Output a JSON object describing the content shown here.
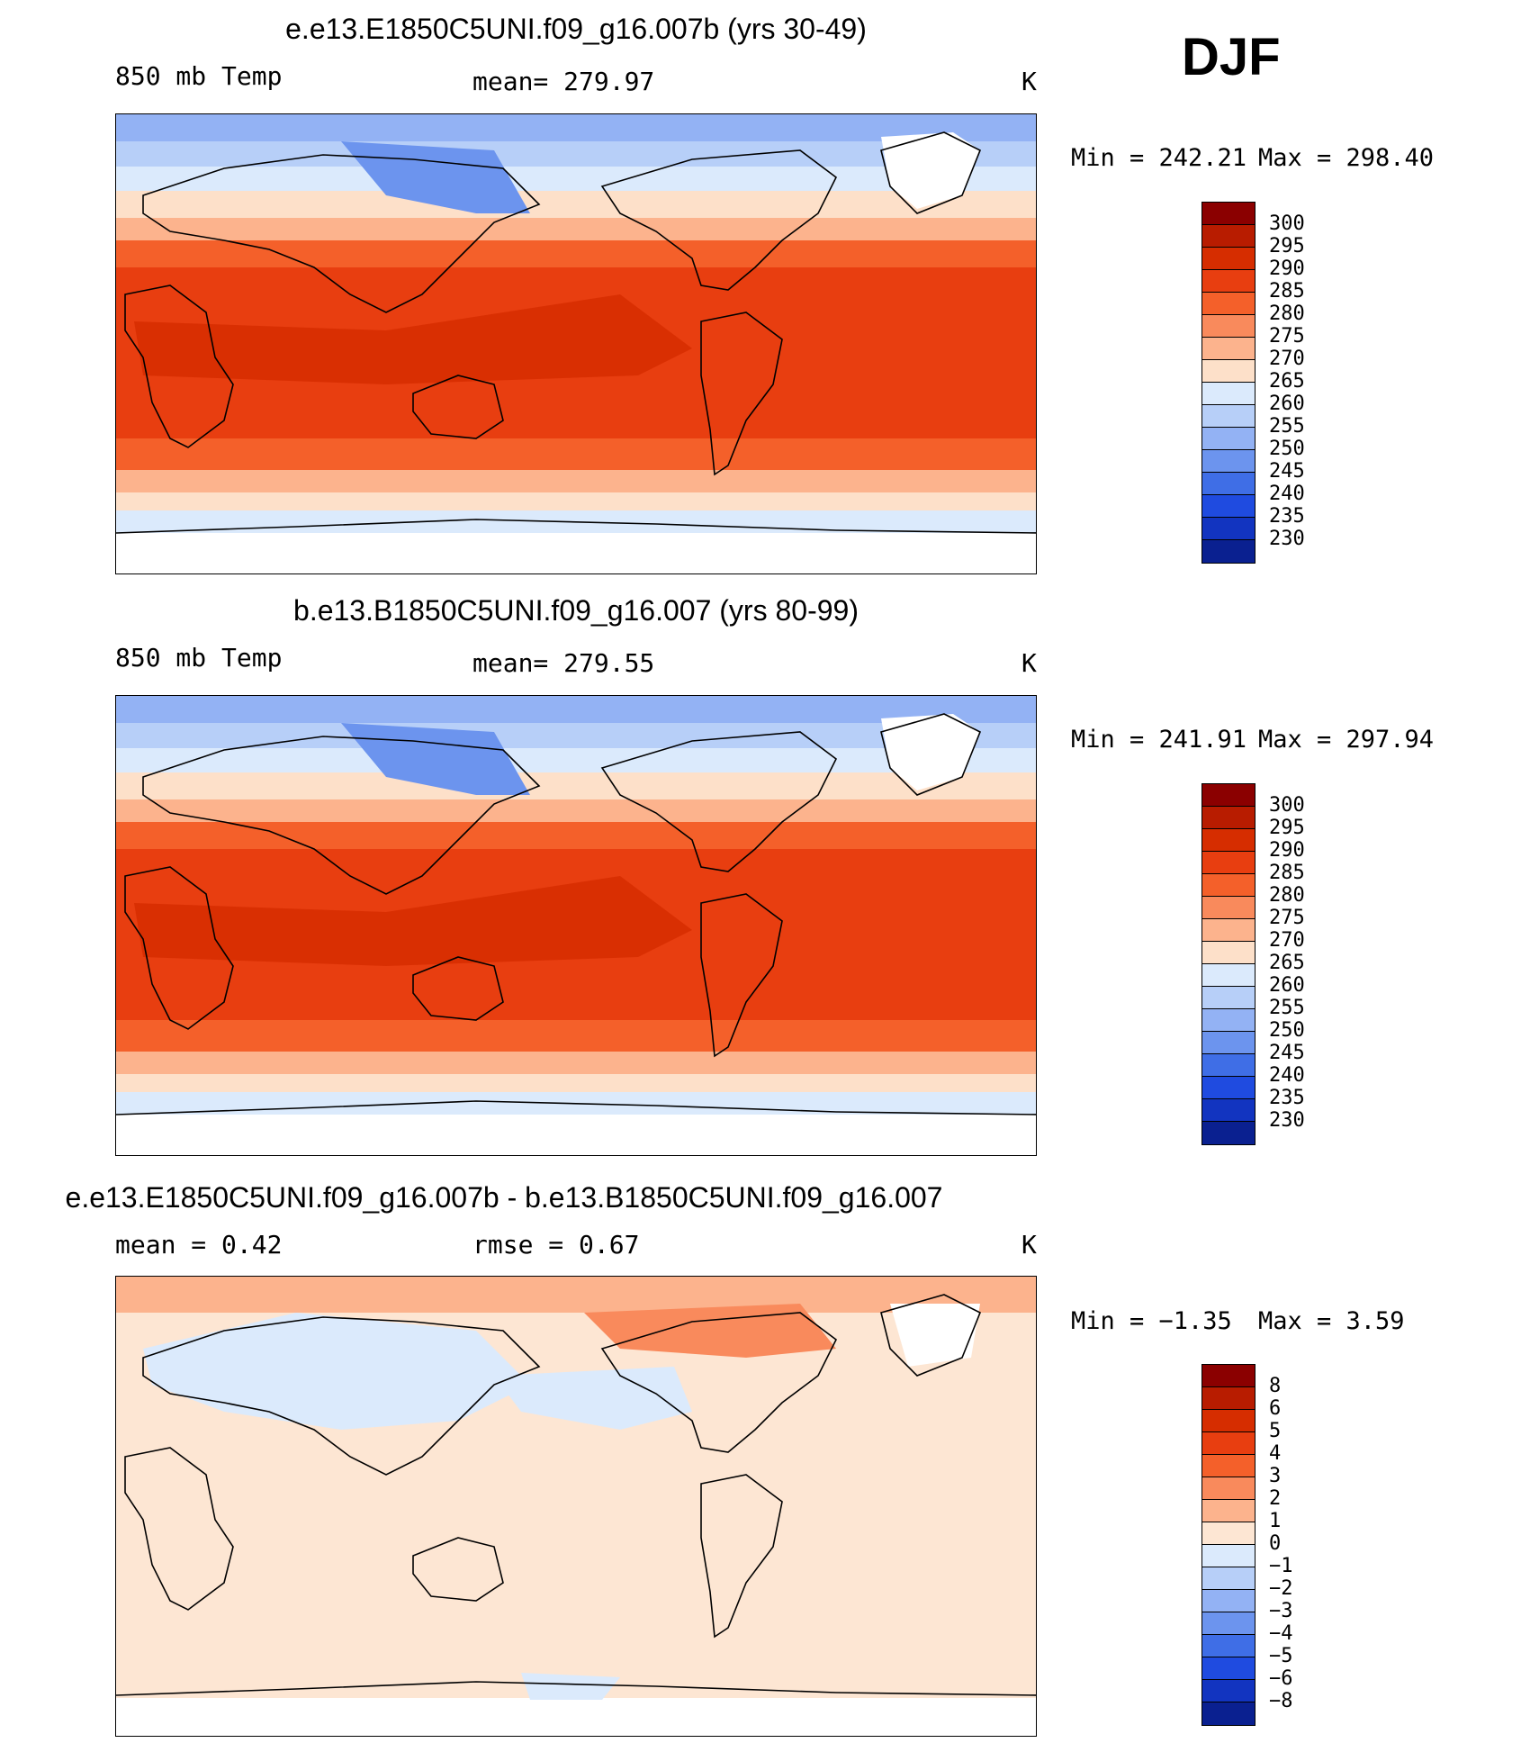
{
  "season": "DJF",
  "panels": [
    {
      "title": "e.e13.E1850C5UNI.f09_g16.007b (yrs 30-49)",
      "left_label": "850 mb  Temp",
      "center_label": "mean=  279.97",
      "unit": "K",
      "min_label": "Min  =  242.21",
      "max_label": "Max  =  298.40",
      "kind": "abs"
    },
    {
      "title": "b.e13.B1850C5UNI.f09_g16.007 (yrs 80-99)",
      "left_label": "850 mb  Temp",
      "center_label": "mean=  279.55",
      "unit": "K",
      "min_label": "Min  =  241.91",
      "max_label": "Max  =  297.94",
      "kind": "abs"
    },
    {
      "title": "e.e13.E1850C5UNI.f09_g16.007b - b.e13.B1850C5UNI.f09_g16.007",
      "left_label": "mean  =     0.42",
      "center_label": "rmse  =     0.67",
      "unit": "K",
      "min_label": "Min  =   −1.35",
      "max_label": "Max  =     3.59",
      "kind": "diff"
    }
  ],
  "colorbars": {
    "abs": {
      "colors_top_to_bottom": [
        "#8b0000",
        "#b81c00",
        "#d62d00",
        "#e83e10",
        "#f4602a",
        "#f98a5c",
        "#fcb38d",
        "#fde0c9",
        "#dbeafc",
        "#b7cff8",
        "#93b2f4",
        "#6c94ee",
        "#3f6ee6",
        "#1f4be0",
        "#1234c0",
        "#0a2090"
      ],
      "tick_labels": [
        "300",
        "295",
        "290",
        "285",
        "280",
        "275",
        "270",
        "265",
        "260",
        "255",
        "250",
        "245",
        "240",
        "235",
        "230"
      ]
    },
    "diff": {
      "colors_top_to_bottom": [
        "#8b0000",
        "#b81c00",
        "#d62d00",
        "#e83e10",
        "#f4602a",
        "#f98a5c",
        "#fcb38d",
        "#fde6d3",
        "#dbeafc",
        "#b7cff8",
        "#93b2f4",
        "#6c94ee",
        "#3f6ee6",
        "#1f4be0",
        "#1234c0",
        "#0a2090"
      ],
      "tick_labels": [
        "8",
        "6",
        "5",
        "4",
        "3",
        "2",
        "1",
        "0",
        "−1",
        "−2",
        "−3",
        "−4",
        "−5",
        "−6",
        "−8"
      ]
    }
  }
}
